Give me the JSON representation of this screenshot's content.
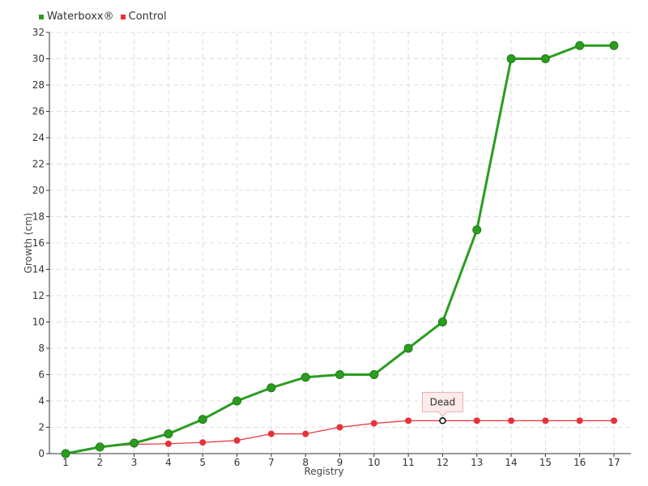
{
  "chart_data": {
    "type": "line",
    "xlabel": "Registry",
    "ylabel": "Growth (cm)",
    "ylim": [
      0,
      32
    ],
    "yticks": [
      "0",
      "2",
      "4",
      "6",
      "8",
      "10",
      "12",
      "14",
      "16",
      "18",
      "20",
      "22",
      "24",
      "26",
      "28",
      "30",
      "32"
    ],
    "categories": [
      "1",
      "2",
      "3",
      "4",
      "5",
      "6",
      "7",
      "8",
      "9",
      "10",
      "11",
      "12",
      "13",
      "14",
      "15",
      "16",
      "17"
    ],
    "grid": true,
    "legend_position": "top-left",
    "series": [
      {
        "name": "Waterboxx®",
        "color": "#2a9d1f",
        "values": [
          0,
          0.5,
          0.8,
          1.5,
          2.6,
          4,
          5,
          5.8,
          6,
          6,
          8,
          10,
          17,
          30,
          30,
          31,
          31
        ]
      },
      {
        "name": "Control",
        "color": "#e8303a",
        "values": [
          0,
          0.5,
          0.7,
          0.75,
          0.85,
          1,
          1.5,
          1.5,
          2,
          2.3,
          2.5,
          2.5,
          2.5,
          2.5,
          2.5,
          2.5,
          2.5
        ]
      }
    ],
    "annotation": {
      "text": "Dead",
      "series": 1,
      "index": 11
    }
  }
}
